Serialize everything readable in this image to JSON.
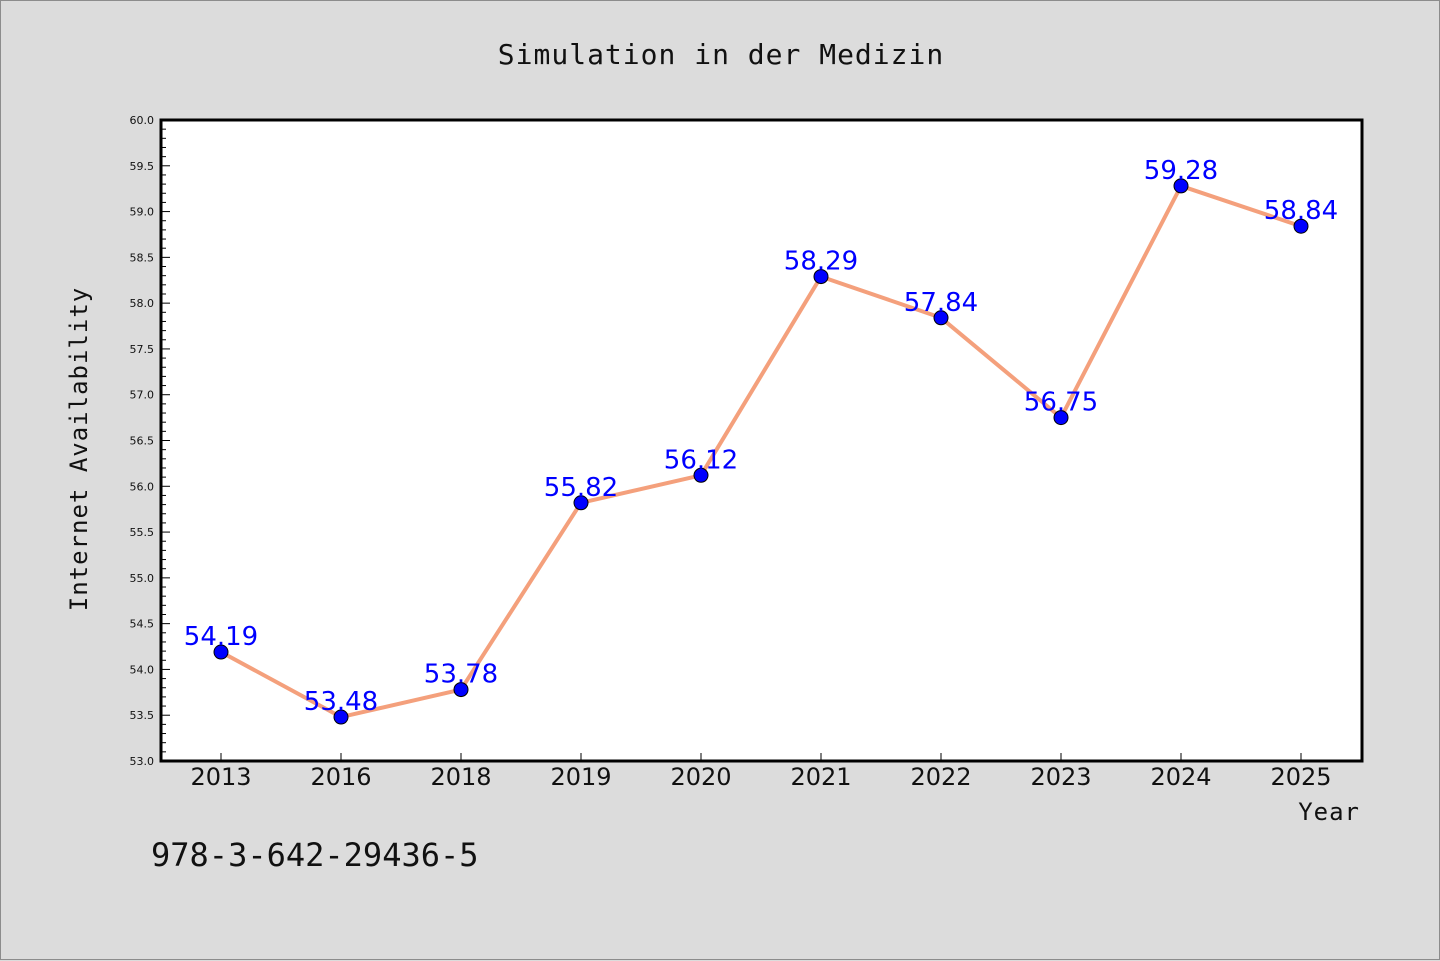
{
  "chart_data": {
    "type": "line",
    "title": "Simulation in der Medizin",
    "xlabel": "Year",
    "ylabel": "Internet Availability",
    "categories": [
      "2013",
      "2016",
      "2018",
      "2019",
      "2020",
      "2021",
      "2022",
      "2023",
      "2024",
      "2025"
    ],
    "series": [
      {
        "values": [
          54.19,
          53.48,
          53.78,
          55.82,
          56.12,
          58.29,
          57.84,
          56.75,
          59.28,
          58.84
        ],
        "data_labels": [
          "54.19",
          "53.48",
          "53.78",
          "55.82",
          "56.12",
          "58.29",
          "57.84",
          "56.75",
          "59.28",
          "58.84"
        ],
        "line_color": "#f4a07c",
        "marker_color": "#0000ff"
      }
    ],
    "ylim": [
      53.0,
      60.0
    ],
    "yticks": [
      "53.0",
      "53.5",
      "54.0",
      "54.5",
      "55.0",
      "55.5",
      "56.0",
      "56.5",
      "57.0",
      "57.5",
      "58.0",
      "58.5",
      "59.0",
      "59.5",
      "60.0"
    ],
    "grid": false,
    "legend": "none"
  },
  "footnote": "978-3-642-29436-5",
  "colors": {
    "background": "#dcdcdc",
    "plot_background": "#ffffff",
    "label_color": "#0000ff"
  }
}
